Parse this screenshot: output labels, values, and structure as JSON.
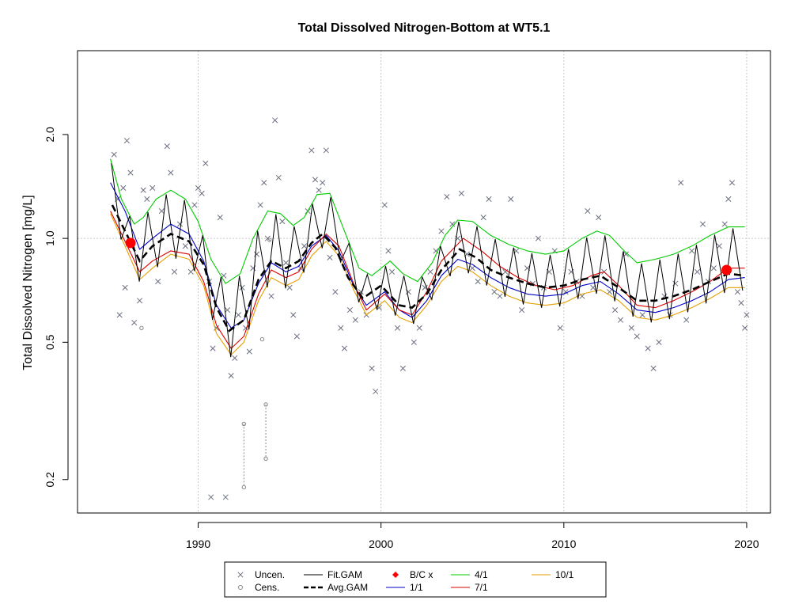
{
  "chart_data": {
    "type": "scatter",
    "title": "Total Dissolved Nitrogen-Bottom at WT5.1",
    "xlabel": "",
    "ylabel": "Total Dissolved Nitrogen [mg/L]",
    "y_scale": "log",
    "xlim": [
      1983.4,
      2021.3
    ],
    "ylim": [
      0.16,
      3.5
    ],
    "grid": true,
    "x_ticks": [
      1990,
      2000,
      2010,
      2020
    ],
    "y_ticks": [
      0.2,
      0.5,
      1.0,
      2.0
    ],
    "y_tick_labels": [
      "0.2",
      "0.5",
      "1.0",
      "2.0"
    ],
    "legend_position": "bottom-center",
    "legend": [
      {
        "label": "Uncen.",
        "symbol": "x",
        "color": "#6b7080"
      },
      {
        "label": "Cens.",
        "symbol": "circle",
        "color": "#888888"
      },
      {
        "label": "Fit.GAM",
        "symbol": "line",
        "color": "#000000"
      },
      {
        "label": "Avg.GAM",
        "symbol": "dashed-line",
        "color": "#000000"
      },
      {
        "label": "B/C x",
        "symbol": "diamond",
        "color": "#ff0000"
      },
      {
        "label": "1/1",
        "symbol": "line",
        "color": "#0000cc"
      },
      {
        "label": "4/1",
        "symbol": "line",
        "color": "#00cc00"
      },
      {
        "label": "7/1",
        "symbol": "line",
        "color": "#dd0000"
      },
      {
        "label": "10/1",
        "symbol": "line",
        "color": "#e69f00"
      }
    ],
    "baseline_line": 1.0,
    "bc_points": [
      {
        "x": 1986.3,
        "y": 0.97
      },
      {
        "x": 2018.9,
        "y": 0.81
      }
    ],
    "avg_gam": {
      "x": [
        1985.3,
        1986.0,
        1986.8,
        1987.5,
        1988.5,
        1989.5,
        1990.3,
        1991.0,
        1991.7,
        1992.5,
        1993.3,
        1994.0,
        1994.8,
        1995.5,
        1996.2,
        1996.8,
        1997.5,
        1998.2,
        1999.0,
        2000.0,
        2001.0,
        2001.7,
        2002.5,
        2003.3,
        2004.3,
        2005.2,
        2006.0,
        2007.0,
        2008.0,
        2009.0,
        2010.0,
        2011.0,
        2012.0,
        2013.0,
        2014.0,
        2015.0,
        2016.0,
        2017.0,
        2018.0,
        2019.0,
        2019.9
      ],
      "y": [
        1.25,
        1.05,
        0.86,
        0.95,
        1.03,
        0.98,
        0.84,
        0.63,
        0.54,
        0.58,
        0.76,
        0.86,
        0.82,
        0.86,
        0.97,
        1.03,
        0.94,
        0.77,
        0.67,
        0.73,
        0.64,
        0.63,
        0.69,
        0.81,
        0.93,
        0.88,
        0.81,
        0.77,
        0.74,
        0.72,
        0.73,
        0.76,
        0.78,
        0.72,
        0.66,
        0.66,
        0.68,
        0.71,
        0.75,
        0.79,
        0.78
      ]
    },
    "season_curves": [
      {
        "name": "4/1",
        "color": "#00cc00",
        "x": [
          1985.2,
          1985.8,
          1986.5,
          1987.0,
          1987.7,
          1988.5,
          1989.3,
          1990.0,
          1990.7,
          1991.5,
          1992.3,
          1993.0,
          1993.8,
          1994.5,
          1995.2,
          1995.8,
          1996.5,
          1997.2,
          1998.0,
          1998.8,
          1999.5,
          2000.5,
          2001.2,
          2002.0,
          2002.8,
          2003.5,
          2004.2,
          2005.0,
          2006.0,
          2007.0,
          2008.0,
          2009.0,
          2010.0,
          2011.0,
          2011.8,
          2012.5,
          2013.3,
          2014.0,
          2015.0,
          2016.0,
          2017.0,
          2018.0,
          2019.0,
          2019.9
        ],
        "y": [
          1.7,
          1.3,
          1.1,
          1.15,
          1.3,
          1.38,
          1.3,
          1.12,
          0.87,
          0.74,
          0.79,
          1.0,
          1.2,
          1.18,
          1.09,
          1.15,
          1.34,
          1.35,
          1.05,
          0.82,
          0.78,
          0.86,
          0.79,
          0.75,
          0.85,
          1.02,
          1.13,
          1.12,
          1.02,
          0.96,
          0.92,
          0.9,
          0.92,
          1.0,
          1.05,
          1.02,
          0.92,
          0.85,
          0.87,
          0.9,
          0.95,
          1.02,
          1.08,
          1.08
        ]
      },
      {
        "name": "1/1",
        "color": "#0000cc",
        "x": [
          1985.2,
          1986.0,
          1986.8,
          1987.5,
          1988.5,
          1989.5,
          1990.3,
          1991.0,
          1991.8,
          1992.5,
          1993.3,
          1994.0,
          1994.8,
          1995.5,
          1996.2,
          1997.0,
          1997.7,
          1998.5,
          1999.2,
          2000.2,
          2001.0,
          2001.7,
          2002.5,
          2003.3,
          2004.2,
          2005.0,
          2006.0,
          2007.0,
          2008.0,
          2009.0,
          2010.0,
          2011.0,
          2012.0,
          2013.0,
          2014.0,
          2015.0,
          2016.0,
          2017.0,
          2018.0,
          2019.0,
          2019.9
        ],
        "y": [
          1.45,
          1.2,
          0.93,
          1.0,
          1.1,
          1.03,
          0.86,
          0.64,
          0.55,
          0.58,
          0.74,
          0.85,
          0.8,
          0.83,
          0.95,
          1.02,
          0.92,
          0.73,
          0.64,
          0.7,
          0.62,
          0.59,
          0.66,
          0.78,
          0.87,
          0.84,
          0.77,
          0.72,
          0.69,
          0.68,
          0.69,
          0.73,
          0.75,
          0.69,
          0.62,
          0.61,
          0.63,
          0.66,
          0.7,
          0.76,
          0.77
        ]
      },
      {
        "name": "7/1",
        "color": "#dd0000",
        "x": [
          1985.2,
          1986.0,
          1986.8,
          1987.5,
          1988.5,
          1989.5,
          1990.3,
          1991.0,
          1991.8,
          1992.5,
          1993.3,
          1994.0,
          1994.8,
          1995.5,
          1996.2,
          1997.0,
          1997.7,
          1998.5,
          1999.2,
          2000.2,
          2001.0,
          2001.7,
          2002.5,
          2003.3,
          2004.5,
          2005.5,
          2006.5,
          2007.5,
          2008.5,
          2009.5,
          2010.5,
          2011.5,
          2012.2,
          2013.0,
          2014.0,
          2015.0,
          2016.0,
          2017.0,
          2018.0,
          2019.0,
          2019.9
        ],
        "y": [
          1.2,
          0.98,
          0.8,
          0.86,
          0.92,
          0.9,
          0.75,
          0.56,
          0.48,
          0.52,
          0.69,
          0.81,
          0.77,
          0.8,
          0.93,
          1.03,
          0.95,
          0.74,
          0.62,
          0.69,
          0.62,
          0.6,
          0.7,
          0.86,
          1.0,
          0.92,
          0.83,
          0.77,
          0.73,
          0.71,
          0.73,
          0.78,
          0.8,
          0.73,
          0.64,
          0.63,
          0.66,
          0.7,
          0.75,
          0.82,
          0.82
        ]
      },
      {
        "name": "10/1",
        "color": "#e69f00",
        "x": [
          1985.2,
          1986.0,
          1986.8,
          1987.5,
          1988.5,
          1989.5,
          1990.3,
          1991.0,
          1991.8,
          1992.5,
          1993.3,
          1994.0,
          1994.8,
          1995.5,
          1996.2,
          1997.0,
          1997.7,
          1998.5,
          1999.2,
          2000.2,
          2001.0,
          2001.7,
          2002.5,
          2003.3,
          2004.2,
          2005.0,
          2006.0,
          2007.0,
          2008.0,
          2009.0,
          2010.0,
          2011.0,
          2012.0,
          2013.0,
          2014.0,
          2015.0,
          2016.0,
          2017.0,
          2018.0,
          2019.0,
          2019.9
        ],
        "y": [
          1.18,
          0.95,
          0.76,
          0.82,
          0.9,
          0.87,
          0.73,
          0.53,
          0.46,
          0.5,
          0.66,
          0.77,
          0.73,
          0.76,
          0.89,
          0.98,
          0.89,
          0.71,
          0.6,
          0.66,
          0.59,
          0.57,
          0.64,
          0.75,
          0.83,
          0.8,
          0.73,
          0.68,
          0.65,
          0.64,
          0.65,
          0.69,
          0.71,
          0.66,
          0.59,
          0.58,
          0.6,
          0.63,
          0.67,
          0.72,
          0.72
        ]
      }
    ],
    "uncensored_points": [
      [
        1985.4,
        1.75
      ],
      [
        1985.6,
        1.3
      ],
      [
        1985.9,
        1.4
      ],
      [
        1986.1,
        1.92
      ],
      [
        1986.3,
        1.55
      ],
      [
        1985.7,
        0.6
      ],
      [
        1986.0,
        0.72
      ],
      [
        1986.5,
        0.57
      ],
      [
        1986.8,
        0.66
      ],
      [
        1987.0,
        1.38
      ],
      [
        1987.2,
        1.3
      ],
      [
        1987.5,
        1.4
      ],
      [
        1987.8,
        0.75
      ],
      [
        1988.0,
        1.2
      ],
      [
        1988.3,
        1.85
      ],
      [
        1988.5,
        1.55
      ],
      [
        1988.7,
        0.8
      ],
      [
        1989.0,
        1.1
      ],
      [
        1989.3,
        0.95
      ],
      [
        1989.6,
        0.8
      ],
      [
        1989.8,
        1.25
      ],
      [
        1990.0,
        1.4
      ],
      [
        1990.2,
        1.35
      ],
      [
        1990.4,
        1.65
      ],
      [
        1990.6,
        0.75
      ],
      [
        1990.8,
        0.48
      ],
      [
        1991.0,
        0.55
      ],
      [
        1991.2,
        1.15
      ],
      [
        1991.4,
        0.78
      ],
      [
        1991.6,
        0.62
      ],
      [
        1991.8,
        0.4
      ],
      [
        1992.0,
        0.45
      ],
      [
        1992.2,
        0.6
      ],
      [
        1992.4,
        0.72
      ],
      [
        1992.6,
        0.55
      ],
      [
        1992.8,
        0.47
      ],
      [
        1993.0,
        0.82
      ],
      [
        1993.2,
        0.9
      ],
      [
        1993.4,
        1.25
      ],
      [
        1993.6,
        1.45
      ],
      [
        1993.8,
        1.0
      ],
      [
        1994.0,
        0.68
      ],
      [
        1994.2,
        2.2
      ],
      [
        1994.4,
        1.5
      ],
      [
        1994.6,
        1.12
      ],
      [
        1994.8,
        0.85
      ],
      [
        1995.0,
        0.72
      ],
      [
        1995.2,
        0.6
      ],
      [
        1995.4,
        0.52
      ],
      [
        1995.6,
        0.82
      ],
      [
        1995.8,
        0.95
      ],
      [
        1996.0,
        1.2
      ],
      [
        1996.2,
        1.8
      ],
      [
        1996.4,
        1.48
      ],
      [
        1996.6,
        1.38
      ],
      [
        1996.8,
        1.45
      ],
      [
        1997.0,
        1.8
      ],
      [
        1997.2,
        0.88
      ],
      [
        1997.5,
        0.7
      ],
      [
        1997.8,
        0.55
      ],
      [
        1998.0,
        0.48
      ],
      [
        1998.3,
        0.62
      ],
      [
        1998.6,
        0.58
      ],
      [
        1998.9,
        0.7
      ],
      [
        1999.2,
        0.6
      ],
      [
        1999.5,
        0.42
      ],
      [
        1999.7,
        0.36
      ],
      [
        1999.9,
        0.63
      ],
      [
        2000.2,
        1.25
      ],
      [
        2000.4,
        0.92
      ],
      [
        2000.6,
        0.8
      ],
      [
        2000.9,
        0.55
      ],
      [
        2001.2,
        0.42
      ],
      [
        2001.5,
        0.7
      ],
      [
        2001.8,
        0.5
      ],
      [
        2002.1,
        0.55
      ],
      [
        2002.4,
        0.72
      ],
      [
        2002.7,
        0.8
      ],
      [
        2003.0,
        0.92
      ],
      [
        2003.3,
        1.05
      ],
      [
        2003.6,
        1.32
      ],
      [
        2003.9,
        1.1
      ],
      [
        2004.2,
        1.0
      ],
      [
        2004.4,
        1.35
      ],
      [
        2004.7,
        0.9
      ],
      [
        2005.0,
        0.82
      ],
      [
        2005.3,
        0.75
      ],
      [
        2005.6,
        1.15
      ],
      [
        2005.9,
        1.3
      ],
      [
        2006.2,
        0.7
      ],
      [
        2006.5,
        0.68
      ],
      [
        2006.8,
        0.8
      ],
      [
        2007.1,
        1.3
      ],
      [
        2007.4,
        0.92
      ],
      [
        2007.7,
        0.62
      ],
      [
        2008.0,
        0.82
      ],
      [
        2008.3,
        0.74
      ],
      [
        2008.6,
        1.0
      ],
      [
        2008.9,
        0.72
      ],
      [
        2009.2,
        0.8
      ],
      [
        2009.5,
        0.92
      ],
      [
        2009.8,
        0.55
      ],
      [
        2010.1,
        0.7
      ],
      [
        2010.4,
        0.8
      ],
      [
        2010.7,
        0.75
      ],
      [
        2011.0,
        0.68
      ],
      [
        2011.3,
        1.2
      ],
      [
        2011.6,
        0.72
      ],
      [
        2011.9,
        1.15
      ],
      [
        2012.2,
        0.8
      ],
      [
        2012.5,
        0.7
      ],
      [
        2012.8,
        0.62
      ],
      [
        2013.1,
        0.58
      ],
      [
        2013.4,
        0.9
      ],
      [
        2013.7,
        0.55
      ],
      [
        2014.0,
        0.52
      ],
      [
        2014.3,
        0.6
      ],
      [
        2014.6,
        0.48
      ],
      [
        2014.9,
        0.42
      ],
      [
        2015.2,
        0.5
      ],
      [
        2015.5,
        0.68
      ],
      [
        2015.8,
        0.6
      ],
      [
        2016.1,
        0.74
      ],
      [
        2016.4,
        1.45
      ],
      [
        2016.7,
        0.58
      ],
      [
        2017.0,
        0.92
      ],
      [
        2017.3,
        0.8
      ],
      [
        2017.6,
        1.1
      ],
      [
        2017.9,
        0.75
      ],
      [
        2018.2,
        0.82
      ],
      [
        2018.5,
        0.95
      ],
      [
        2018.8,
        1.1
      ],
      [
        2019.0,
        1.3
      ],
      [
        2019.2,
        1.45
      ],
      [
        2019.5,
        0.7
      ],
      [
        2019.7,
        0.65
      ],
      [
        2019.9,
        0.55
      ],
      [
        2020.0,
        0.6
      ]
    ],
    "censored_points": [
      {
        "x": 1986.9,
        "y": 0.55
      },
      {
        "x": 1992.5,
        "y": 0.29,
        "lower": 0.19
      },
      {
        "x": 1993.7,
        "y": 0.33,
        "lower": 0.23
      },
      {
        "x": 1993.5,
        "y": 0.51
      },
      {
        "x": 1993.9,
        "y": 0.99
      }
    ],
    "censored_below_plot": [
      1990.7,
      1991.5
    ]
  }
}
